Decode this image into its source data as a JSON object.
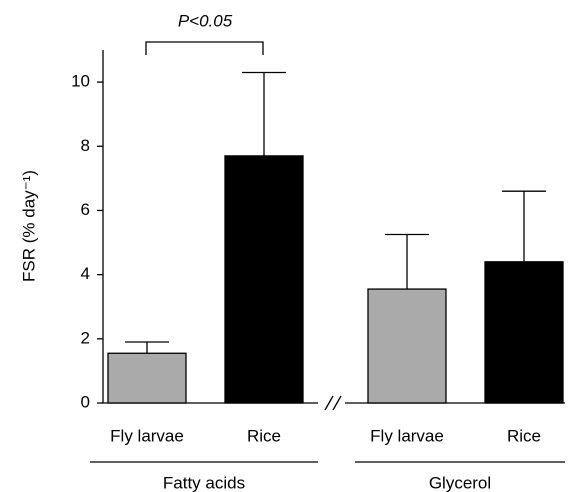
{
  "chart_data": {
    "type": "bar",
    "ylabel": "FSR (% day⁻¹)",
    "annotation": "P<0.05",
    "ylim": [
      0,
      11
    ],
    "yticks": [
      0,
      2,
      4,
      6,
      8,
      10
    ],
    "colors": [
      "#aaaaaa",
      "#000000"
    ],
    "groups": [
      {
        "label": "Fatty acids",
        "categories": [
          "Fly larvae",
          "Rice"
        ],
        "values": [
          1.55,
          7.7
        ],
        "errors": [
          0.35,
          2.6
        ]
      },
      {
        "label": "Glycerol",
        "categories": [
          "Fly larvae",
          "Rice"
        ],
        "values": [
          3.55,
          4.4
        ],
        "errors": [
          1.7,
          2.2
        ]
      }
    ]
  }
}
